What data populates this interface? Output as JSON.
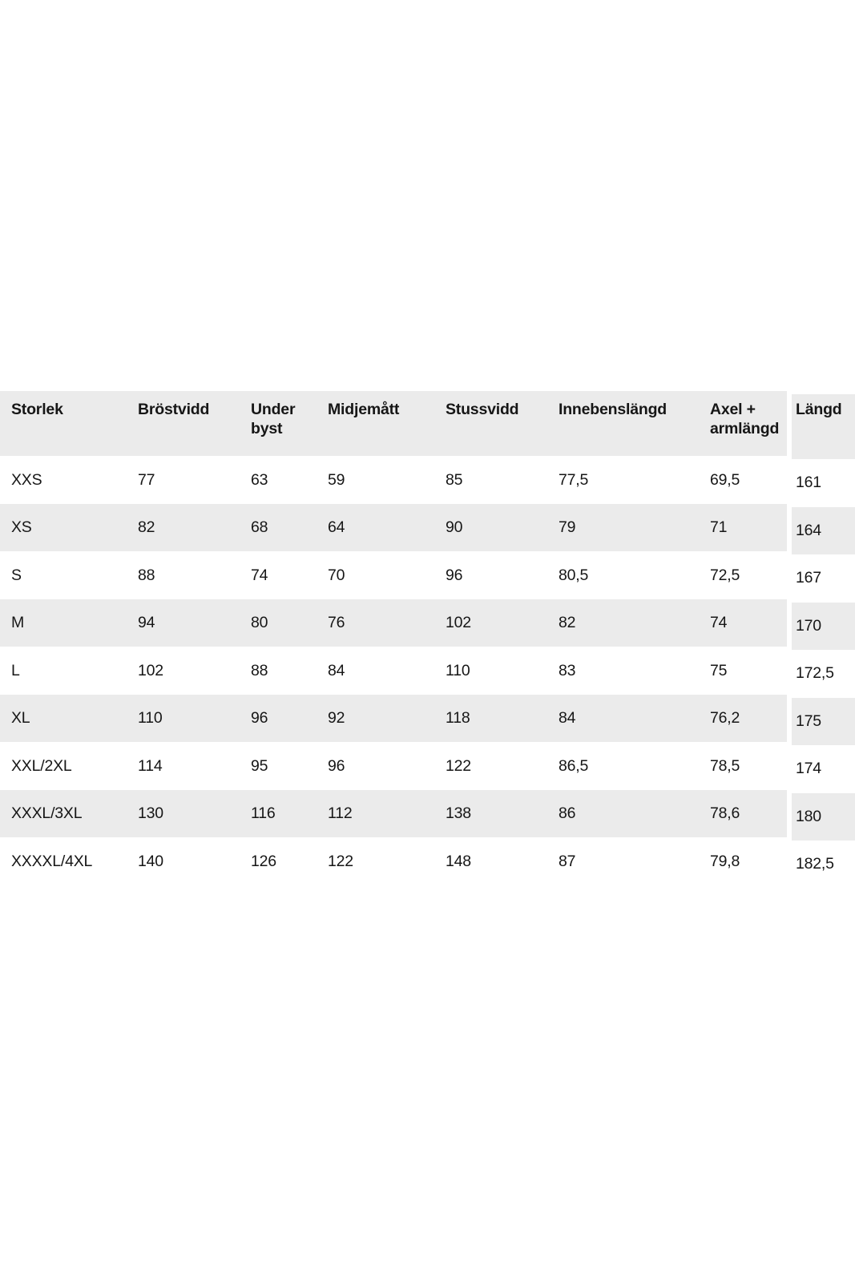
{
  "page": {
    "background": "#ffffff"
  },
  "size_chart": {
    "columns": [
      "Storlek",
      "Bröstvidd",
      "Under byst",
      "Midjemått",
      "Stussvidd",
      "Innebenslängd",
      "Axel + armlängd"
    ],
    "langd_column": "Längd",
    "rows": [
      {
        "size": "XXS",
        "values": [
          "77",
          "63",
          "59",
          "85",
          "77,5",
          "69,5"
        ],
        "langd": "161"
      },
      {
        "size": "XS",
        "values": [
          "82",
          "68",
          "64",
          "90",
          "79",
          "71"
        ],
        "langd": "164"
      },
      {
        "size": "S",
        "values": [
          "88",
          "74",
          "70",
          "96",
          "80,5",
          "72,5"
        ],
        "langd": "167"
      },
      {
        "size": "M",
        "values": [
          "94",
          "80",
          "76",
          "102",
          "82",
          "74"
        ],
        "langd": "170"
      },
      {
        "size": "L",
        "values": [
          "102",
          "88",
          "84",
          "110",
          "83",
          "75"
        ],
        "langd": "172,5"
      },
      {
        "size": "XL",
        "values": [
          "110",
          "96",
          "92",
          "118",
          "84",
          "76,2"
        ],
        "langd": "175"
      },
      {
        "size": "XXL/2XL",
        "values": [
          "114",
          "95",
          "96",
          "122",
          "86,5",
          "78,5"
        ],
        "langd": "174"
      },
      {
        "size": "XXXL/3XL",
        "values": [
          "130",
          "116",
          "112",
          "138",
          "86",
          "78,6"
        ],
        "langd": "180"
      },
      {
        "size": "XXXXL/4XL",
        "values": [
          "140",
          "126",
          "122",
          "148",
          "87",
          "79,8"
        ],
        "langd": "182,5"
      }
    ],
    "colors": {
      "band_gray": "#ebebeb",
      "text": "#161616",
      "background": "#ffffff"
    }
  }
}
